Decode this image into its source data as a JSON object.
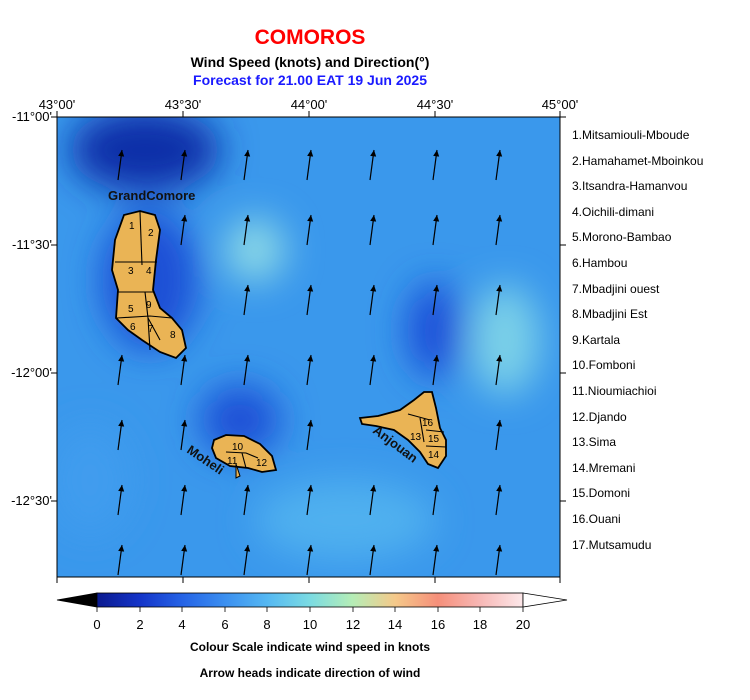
{
  "title": "COMOROS",
  "subtitle": "Wind Speed (knots) and Direction(°)",
  "forecast": "Forecast for  21.00 EAT 19 Jun 2025",
  "lon_ticks": [
    "43°00'",
    "43°30'",
    "44°00'",
    "44°30'",
    "45°00'"
  ],
  "lat_ticks": [
    "-11°00'",
    "-11°30'",
    "-12°00'",
    "-12°30'"
  ],
  "islands": {
    "grande_comore": "GrandComore",
    "moheli": "Moheli",
    "anjouan": "Anjouan"
  },
  "regions": [
    "1.Mitsamiouli-Mboude",
    "2.Hamahamet-Mboinkou",
    "3.Itsandra-Hamanvou",
    "4.Oichili-dimani",
    "5.Morono-Bambao",
    "6.Hambou",
    "7.Mbadjini ouest",
    "8.Mbadjini Est",
    "9.Kartala",
    "10.Fomboni",
    "11.Nioumiachioi",
    "12.Djando",
    "13.Sima",
    "14.Mremani",
    "15.Domoni",
    "16.Ouani",
    "17.Mutsamudu"
  ],
  "region_numbers": {
    "grande_comore": [
      "1",
      "2",
      "3",
      "4",
      "5",
      "9",
      "6",
      "7",
      "8"
    ],
    "moheli": [
      "10",
      "11",
      "12"
    ],
    "anjouan": [
      "16",
      "13",
      "15",
      "14"
    ]
  },
  "colorbar": {
    "ticks": [
      "0",
      "2",
      "4",
      "6",
      "8",
      "10",
      "12",
      "14",
      "16",
      "18",
      "20"
    ],
    "colors": [
      "#0b1a8f",
      "#1434c8",
      "#2563e6",
      "#3b8ff0",
      "#55b8f2",
      "#7bdbe2",
      "#b5edb6",
      "#f5c98a",
      "#f58f7a",
      "#f7b8b6",
      "#fde8ea"
    ]
  },
  "notes": [
    "Colour Scale indicate wind speed in knots",
    "Arrow heads indicate direction of wind"
  ]
}
